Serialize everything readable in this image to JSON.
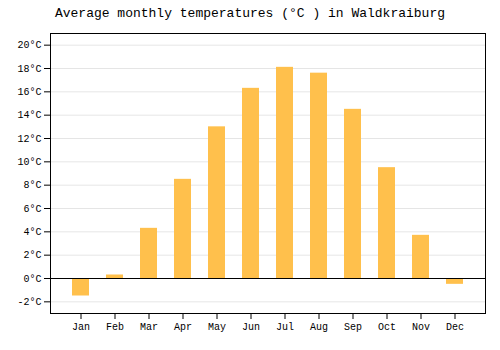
{
  "chart_data": {
    "type": "bar",
    "title": "Average monthly temperatures (°C ) in Waldkraiburg",
    "categories": [
      "Jan",
      "Feb",
      "Mar",
      "Apr",
      "May",
      "Jun",
      "Jul",
      "Aug",
      "Sep",
      "Oct",
      "Nov",
      "Dec"
    ],
    "values": [
      -1.5,
      0.3,
      4.3,
      8.5,
      13.0,
      16.3,
      18.1,
      17.6,
      14.5,
      9.5,
      3.7,
      -0.5
    ],
    "color": "#FFC04C",
    "ylim": [
      -3,
      21
    ],
    "yticks": [
      {
        "value": -2,
        "label": "-2°C"
      },
      {
        "value": 0,
        "label": "0°C"
      },
      {
        "value": 2,
        "label": "2°C"
      },
      {
        "value": 4,
        "label": "4°C"
      },
      {
        "value": 6,
        "label": "6°C"
      },
      {
        "value": 8,
        "label": "8°C"
      },
      {
        "value": 10,
        "label": "10°C"
      },
      {
        "value": 12,
        "label": "12°C"
      },
      {
        "value": 14,
        "label": "14°C"
      },
      {
        "value": 16,
        "label": "16°C"
      },
      {
        "value": 18,
        "label": "18°C"
      },
      {
        "value": 20,
        "label": "20°C"
      }
    ],
    "grid": true
  }
}
